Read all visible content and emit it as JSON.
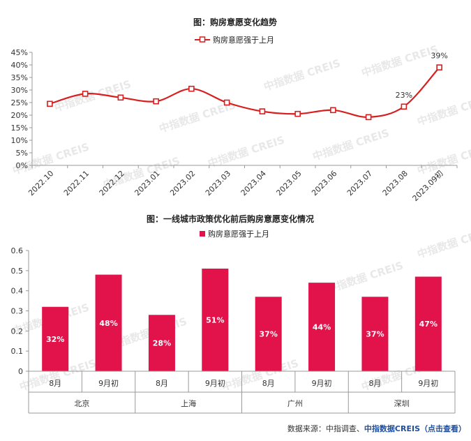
{
  "colors": {
    "accent": "#e2124b",
    "line": "#d81e1e",
    "axis": "#999999"
  },
  "watermark_text": "中指数据 CREIS",
  "chart_data": [
    {
      "type": "line",
      "title": "图：购房意愿变化趋势",
      "series": [
        {
          "name": "购房意愿强于上月",
          "values": [
            24.5,
            28.5,
            27,
            25.5,
            30.5,
            25,
            21.5,
            20.5,
            22,
            19.2,
            23.4,
            39
          ]
        }
      ],
      "x": [
        "2022.10",
        "2022.11",
        "2022.12",
        "2023.01",
        "2023.02",
        "2023.03",
        "2023.04",
        "2023.05",
        "2023.06",
        "2023.07",
        "2023.08",
        "2023.09初"
      ],
      "data_labels": [
        {
          "index": 10,
          "text": "23%"
        },
        {
          "index": 11,
          "text": "39%"
        }
      ],
      "ylim": [
        0,
        45
      ],
      "yticks": [
        "0%",
        "5%",
        "10%",
        "15%",
        "20%",
        "25%",
        "30%",
        "35%",
        "40%",
        "45%"
      ],
      "legend": "top-center"
    },
    {
      "type": "bar",
      "title": "图：一线城市政策优化前后购房意愿变化情况",
      "series": [
        {
          "name": "购房意愿强于上月",
          "values": [
            0.32,
            0.48,
            0.28,
            0.51,
            0.37,
            0.44,
            0.37,
            0.47
          ],
          "labels": [
            "32%",
            "48%",
            "28%",
            "51%",
            "37%",
            "44%",
            "37%",
            "47%"
          ]
        }
      ],
      "categories": [
        "8月",
        "9月初",
        "8月",
        "9月初",
        "8月",
        "9月初",
        "8月",
        "9月初"
      ],
      "groups": [
        "北京",
        "上海",
        "广州",
        "深圳"
      ],
      "ylim": [
        0,
        0.6
      ],
      "yticks": [
        "0",
        "0.1",
        "0.2",
        "0.3",
        "0.4",
        "0.5",
        "0.6"
      ],
      "legend": "top-center"
    }
  ],
  "source": {
    "prefix": "数据来源：中指调查、",
    "brand": "中指数据CREIS",
    "suffix": "（点击查看）"
  }
}
